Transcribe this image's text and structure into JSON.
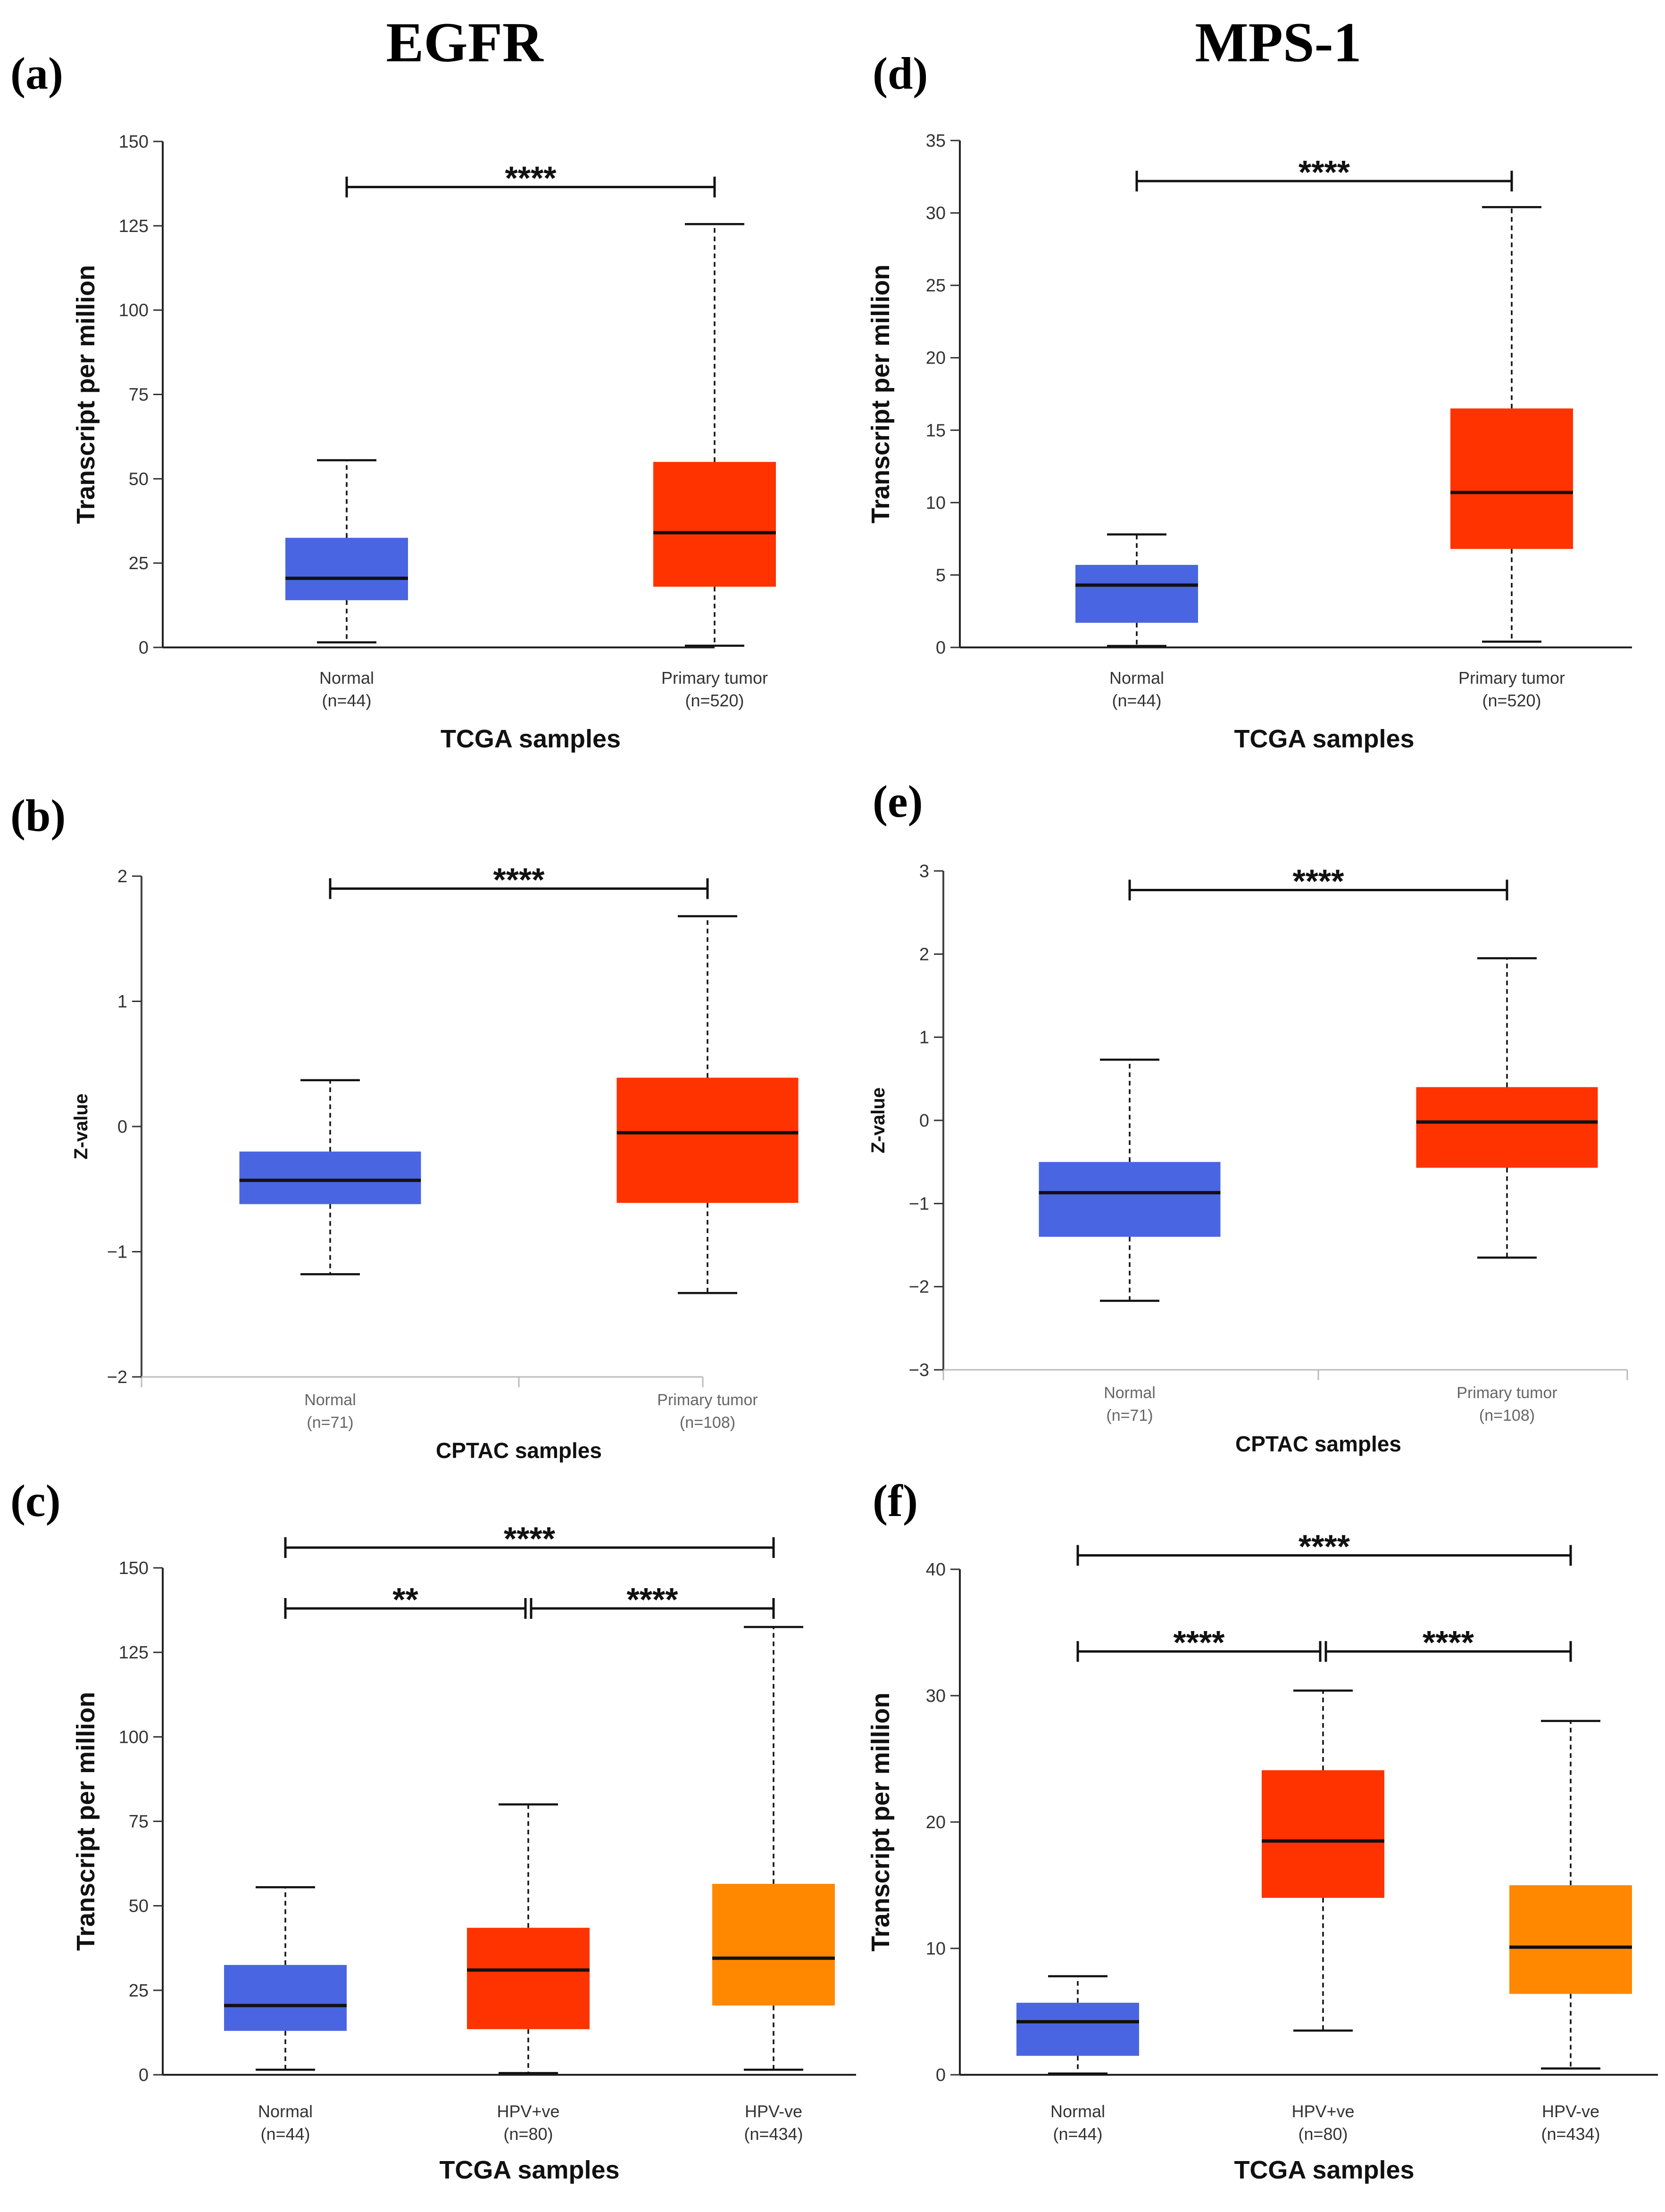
{
  "genes": [
    {
      "name": "EGFR",
      "column": 0
    },
    {
      "name": "MPS-1",
      "column": 1
    }
  ],
  "chart_data": [
    {
      "id": "a",
      "panel_label": "(a)",
      "type": "box",
      "style": "tcga",
      "column": 0,
      "row": 0,
      "ylabel": "Transcript per million",
      "xlabel": "TCGA samples",
      "ylim": [
        0,
        150
      ],
      "yticks": [
        0,
        25,
        50,
        75,
        100,
        125,
        150
      ],
      "groups": [
        {
          "name": "Normal",
          "n": "(n=44)",
          "color": "#4a65e2",
          "min": 1.5,
          "q1": 14,
          "median": 20.5,
          "q3": 32.5,
          "max": 55.5
        },
        {
          "name": "Primary tumor",
          "n": "(n=520)",
          "color": "#ff3300",
          "min": 0.5,
          "q1": 18,
          "median": 34,
          "q3": 55,
          "max": 125.5
        }
      ],
      "significance": [
        {
          "from": 0,
          "to": 1,
          "label": "****",
          "value": 136.5
        }
      ]
    },
    {
      "id": "b",
      "panel_label": "(b)",
      "type": "box",
      "style": "cptac",
      "column": 0,
      "row": 1,
      "ylabel": "Z-value",
      "xlabel": "CPTAC samples",
      "ylim": [
        -2,
        2
      ],
      "yticks": [
        -2,
        -1,
        0,
        1,
        2
      ],
      "groups": [
        {
          "name": "Normal",
          "n": "(n=71)",
          "color": "#4a65e2",
          "min": -1.18,
          "q1": -0.62,
          "median": -0.43,
          "q3": -0.2,
          "max": 0.37
        },
        {
          "name": "Primary tumor",
          "n": "(n=108)",
          "color": "#ff3300",
          "min": -1.33,
          "q1": -0.61,
          "median": -0.05,
          "q3": 0.39,
          "max": 1.68
        }
      ],
      "significance": [
        {
          "from": 0,
          "to": 1,
          "label": "****",
          "value": 1.9
        }
      ]
    },
    {
      "id": "c",
      "panel_label": "(c)",
      "type": "box",
      "style": "tcga",
      "column": 0,
      "row": 2,
      "ylabel": "Transcript per million",
      "xlabel": "TCGA samples",
      "ylim": [
        0,
        150
      ],
      "yticks": [
        0,
        25,
        50,
        75,
        100,
        125,
        150
      ],
      "groups": [
        {
          "name": "Normal",
          "n": "(n=44)",
          "color": "#4a65e2",
          "min": 1.5,
          "q1": 13,
          "median": 20.5,
          "q3": 32.5,
          "max": 55.5
        },
        {
          "name": "HPV+ve",
          "n": "(n=80)",
          "color": "#ff3300",
          "min": 0.5,
          "q1": 13.5,
          "median": 31,
          "q3": 43.5,
          "max": 80
        },
        {
          "name": "HPV-ve",
          "n": "(n=434)",
          "color": "#ff8800",
          "min": 1.5,
          "q1": 20.5,
          "median": 34.5,
          "q3": 56.5,
          "max": 132.5
        }
      ],
      "significance": [
        {
          "from": 0,
          "to": 2,
          "label": "****",
          "value": 156
        },
        {
          "from": 0,
          "to": 1,
          "label": "**",
          "value": 138
        },
        {
          "from": 1,
          "to": 2,
          "label": "****",
          "value": 138
        }
      ]
    },
    {
      "id": "d",
      "panel_label": "(d)",
      "type": "box",
      "style": "tcga",
      "column": 1,
      "row": 0,
      "ylabel": "Transcript per million",
      "xlabel": "TCGA samples",
      "ylim": [
        0,
        35
      ],
      "yticks": [
        0,
        5,
        10,
        15,
        20,
        25,
        30,
        35
      ],
      "groups": [
        {
          "name": "Normal",
          "n": "(n=44)",
          "color": "#4a65e2",
          "min": 0.1,
          "q1": 1.7,
          "median": 4.3,
          "q3": 5.7,
          "max": 7.8
        },
        {
          "name": "Primary tumor",
          "n": "(n=520)",
          "color": "#ff3300",
          "min": 0.4,
          "q1": 6.8,
          "median": 10.7,
          "q3": 16.5,
          "max": 30.4
        }
      ],
      "significance": [
        {
          "from": 0,
          "to": 1,
          "label": "****",
          "value": 32.2
        }
      ]
    },
    {
      "id": "e",
      "panel_label": "(e)",
      "type": "box",
      "style": "cptac",
      "column": 1,
      "row": 1,
      "ylabel": "Z-value",
      "xlabel": "CPTAC samples",
      "ylim": [
        -3,
        3
      ],
      "yticks": [
        -3,
        -2,
        -1,
        0,
        1,
        2,
        3
      ],
      "groups": [
        {
          "name": "Normal",
          "n": "(n=71)",
          "color": "#4a65e2",
          "min": -2.17,
          "q1": -1.4,
          "median": -0.87,
          "q3": -0.5,
          "max": 0.73
        },
        {
          "name": "Primary tumor",
          "n": "(n=108)",
          "color": "#ff3300",
          "min": -1.65,
          "q1": -0.57,
          "median": -0.02,
          "q3": 0.4,
          "max": 1.95
        }
      ],
      "significance": [
        {
          "from": 0,
          "to": 1,
          "label": "****",
          "value": 2.77
        }
      ]
    },
    {
      "id": "f",
      "panel_label": "(f)",
      "type": "box",
      "style": "tcga",
      "column": 1,
      "row": 2,
      "ylabel": "Transcript per million",
      "xlabel": "TCGA samples",
      "ylim": [
        0,
        40
      ],
      "yticks": [
        0,
        10,
        20,
        30,
        40
      ],
      "groups": [
        {
          "name": "Normal",
          "n": "(n=44)",
          "color": "#4a65e2",
          "min": 0.1,
          "q1": 1.5,
          "median": 4.2,
          "q3": 5.7,
          "max": 7.8
        },
        {
          "name": "HPV+ve",
          "n": "(n=80)",
          "color": "#ff3300",
          "min": 3.5,
          "q1": 14,
          "median": 18.5,
          "q3": 24.1,
          "max": 30.4
        },
        {
          "name": "HPV-ve",
          "n": "(n=434)",
          "color": "#ff8800",
          "min": 0.5,
          "q1": 6.4,
          "median": 10.1,
          "q3": 15,
          "max": 28
        }
      ],
      "significance": [
        {
          "from": 0,
          "to": 2,
          "label": "****",
          "value": 41.1
        },
        {
          "from": 0,
          "to": 1,
          "label": "****",
          "value": 33.5
        },
        {
          "from": 1,
          "to": 2,
          "label": "****",
          "value": 33.5
        }
      ]
    }
  ]
}
